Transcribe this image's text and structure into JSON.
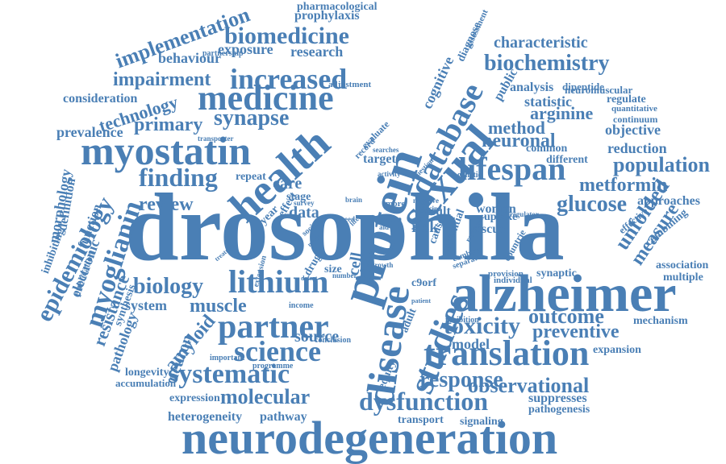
{
  "color": "#4a7fb5",
  "words": [
    "drosophila",
    "neurodegeneration",
    "alzheimer",
    "protein",
    "sexual",
    "health",
    "myostatin",
    "disease",
    "studies",
    "translation",
    "lifespan",
    "database",
    "medicine",
    "partner",
    "lithium",
    "science",
    "systematic",
    "finding",
    "myoglianin",
    "epidemiology",
    "dysfunction",
    "toxicity",
    "increased",
    "biochemistry",
    "biomedicine",
    "implementation",
    "impairment",
    "response",
    "observational",
    "molecular",
    "unfolded",
    "biology",
    "glucose",
    "metformin",
    "population",
    "neuronal",
    "outcome",
    "preventive",
    "muscle",
    "amyloid",
    "review",
    "synapse",
    "technology",
    "primary",
    "measure",
    "characteristic",
    "behaviour",
    "exposure",
    "research",
    "prophylaxis",
    "pharmacological",
    "method",
    "arginine",
    "reduction",
    "objective",
    "approaches",
    "consideration",
    "prevalence",
    "morphology",
    "definition",
    "resistance",
    "electronic",
    "function",
    "inhibiting",
    "publication",
    "system",
    "pathology",
    "synthesis",
    "neuron",
    "longevity",
    "accumulation",
    "expression",
    "heterogeneity",
    "pathway",
    "transport",
    "signaling",
    "pathogenesis",
    "suppresses",
    "expansion",
    "mechanism",
    "association",
    "multiple",
    "combining",
    "effective",
    "continuum",
    "quantitative",
    "regulate",
    "neuromuscular",
    "dipeptide",
    "analysis",
    "statistic",
    "public",
    "cognitive",
    "diagnose",
    "assessment",
    "adjustment",
    "partnership",
    "transporter",
    "care",
    "data",
    "risk",
    "result",
    "woman",
    "uptake",
    "rescue",
    "repeat",
    "stage",
    "target",
    "common",
    "different",
    "genetic",
    "model",
    "source",
    "conclusion",
    "income",
    "programme",
    "important",
    "inhibition",
    "equity",
    "adult",
    "c9orf",
    "cell",
    "size",
    "number",
    "drug",
    "individual",
    "provision",
    "combine",
    "separate",
    "patient",
    "growth",
    "potential",
    "cause",
    "level",
    "synaptic",
    "countrie",
    "rationale",
    "regulator",
    "question",
    "evaluate",
    "negative",
    "glycine",
    "record",
    "searches",
    "activity",
    "treatment",
    "extension",
    "year",
    "effect",
    "brain",
    "survey",
    "social",
    "defect",
    "meta",
    "aid",
    "more",
    "need",
    "life",
    "mode"
  ]
}
